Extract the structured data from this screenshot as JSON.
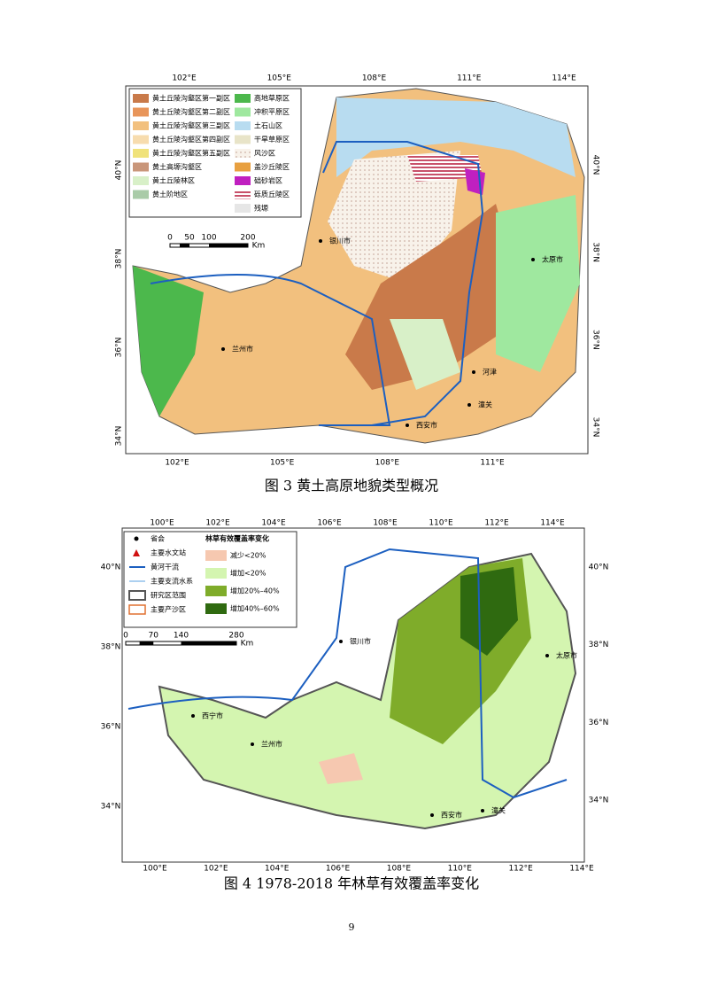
{
  "figure_1": {
    "caption": "图 3 黄土高原地貌类型概况",
    "legend": [
      {
        "label": "黄土丘陵沟壑区第一副区",
        "color": "#c97a4a"
      },
      {
        "label": "黄土丘陵沟壑区第二副区",
        "color": "#e8955a"
      },
      {
        "label": "黄土丘陵沟壑区第三副区",
        "color": "#f2c07e"
      },
      {
        "label": "黄土丘陵沟壑区第四副区",
        "color": "#f7dcae"
      },
      {
        "label": "黄土丘陵沟壑区第五副区",
        "color": "#f0e27a"
      },
      {
        "label": "黄土高塬沟壑区",
        "color": "#c9967a"
      },
      {
        "label": "黄土丘陵林区",
        "color": "#d8f0c8"
      },
      {
        "label": "黄土阶地区",
        "color": "#a9cba8"
      },
      {
        "label": "高地草原区",
        "color": "#4cb84c"
      },
      {
        "label": "冲积平原区",
        "color": "#9fe89f"
      },
      {
        "label": "土石山区",
        "color": "#b8dcf0"
      },
      {
        "label": "干旱草原区",
        "color": "#e8e4c8"
      },
      {
        "label": "风沙区",
        "color": "#f8f2ea"
      },
      {
        "label": "盖沙丘陵区",
        "color": "#e8a040"
      },
      {
        "label": "础砂岩区",
        "color": "#c020c0"
      },
      {
        "label": "砾质丘陵区",
        "color": "#c8506a"
      },
      {
        "label": "残塬",
        "color": "#e6e6e6"
      }
    ],
    "scale": [
      "0",
      "50",
      "100",
      "200",
      "Km"
    ],
    "lon_top": [
      "102°E",
      "105°E",
      "108°E",
      "111°E",
      "114°E"
    ],
    "lon_bottom": [
      "102°E",
      "105°E",
      "108°E",
      "111°E"
    ],
    "lat_left": [
      "40°N",
      "38°N",
      "36°N",
      "34°N"
    ],
    "lat_right": [
      "40°N",
      "38°N",
      "36°N",
      "34°N"
    ],
    "places": [
      "银川市",
      "太原市",
      "兰州市",
      "西安市",
      "河津",
      "潼关"
    ]
  },
  "figure_2": {
    "caption": "图 4 1978-2018 年林草有效覆盖率变化",
    "legend_symbols": [
      "省会",
      "主要水文站",
      "黄河干流",
      "主要支流水系",
      "研究区范围",
      "主要产沙区"
    ],
    "legend_title": "林草有效覆盖率变化",
    "legend": [
      {
        "label": "减少<20%",
        "color": "#f6c8b0"
      },
      {
        "label": "增加<20%",
        "color": "#d4f5b0"
      },
      {
        "label": "增加20%–40%",
        "color": "#7fac2a"
      },
      {
        "label": "增加40%–60%",
        "color": "#2f6a10"
      }
    ],
    "scale": [
      "0",
      "70",
      "140",
      "280",
      "Km"
    ],
    "lon_top": [
      "100°E",
      "102°E",
      "104°E",
      "106°E",
      "108°E",
      "110°E",
      "112°E",
      "114°E"
    ],
    "lon_bottom": [
      "100°E",
      "102°E",
      "104°E",
      "106°E",
      "108°E",
      "110°E",
      "112°E",
      "114°E"
    ],
    "lat_left": [
      "40°N",
      "38°N",
      "36°N",
      "34°N"
    ],
    "lat_right": [
      "40°N",
      "38°N",
      "36°N",
      "34°N"
    ],
    "places": [
      "银川市",
      "太原市",
      "兰州市",
      "西安市",
      "西宁市",
      "潼关"
    ]
  },
  "page_number": "9"
}
